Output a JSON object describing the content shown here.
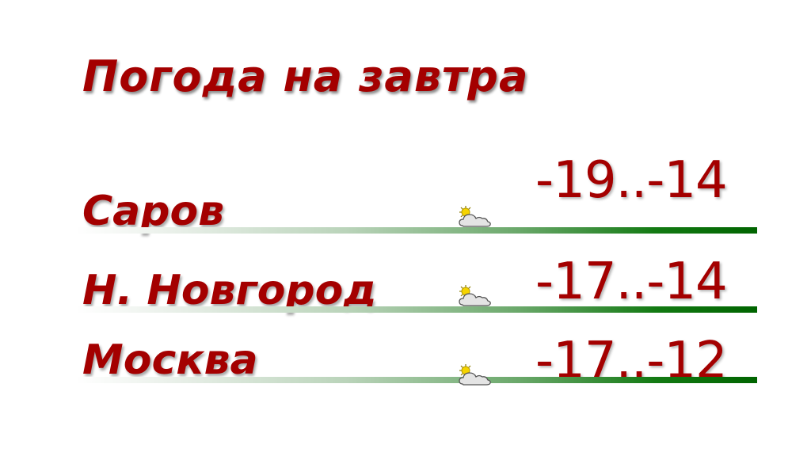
{
  "title": "Погода на завтра",
  "rows": [
    {
      "city": "Саров",
      "temp": "-19..-14",
      "icon": "partly-cloudy-icon"
    },
    {
      "city": "Н. Новгород",
      "temp": "-17..-14",
      "icon": "partly-cloudy-icon"
    },
    {
      "city": "Москва",
      "temp": "-17..-12",
      "icon": "partly-cloudy-icon"
    }
  ],
  "colors": {
    "text": "#a40000",
    "bar_start": "#ffffff",
    "bar_end": "#006400",
    "sun": "#f5d400",
    "cloud": "#e0e0e0"
  }
}
